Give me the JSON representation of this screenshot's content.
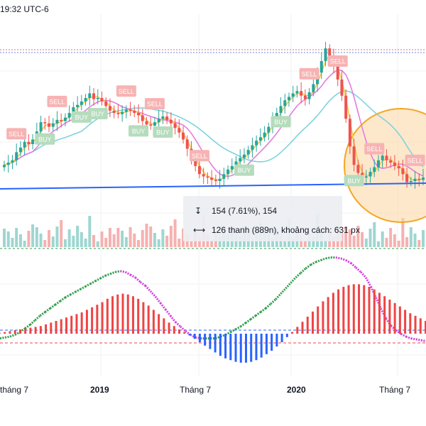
{
  "header": {
    "time_text": "19:32 UTC-6"
  },
  "measure": {
    "price_icon": "vertical-range-icon",
    "bars_icon": "horizontal-range-icon",
    "price_change_text": "154 (7.61%), 154",
    "bars_text": "126 thanh (889n), khoảng cách: 631 px"
  },
  "colors": {
    "up": "#26a69a",
    "down": "#ef5350",
    "ma_fast": "#f7c948",
    "ma_mid": "#e37ce0",
    "ma_slow": "#7fd3dd",
    "trendline": "#2962ff",
    "circle_stroke": "#f5a623",
    "circle_fill": "#fbd9a8",
    "sell_label": "#f7b3b3",
    "buy_label": "#b6dcbd",
    "osc_green": "#2e9e4a",
    "osc_magenta": "#d340dd",
    "osc_red": "#ef4444",
    "osc_blue": "#2962ff"
  },
  "chart_data": {
    "type": "line",
    "title": "",
    "x_labels": [
      "tháng 7",
      "2019",
      "Tháng 7",
      "2020",
      "Tháng 7"
    ],
    "close": [
      1.1,
      1.2,
      1.3,
      1.65,
      1.85,
      2.1,
      2.0,
      2.2,
      2.55,
      2.95,
      2.9,
      2.75,
      2.9,
      3.05,
      3.0,
      3.15,
      3.35,
      3.6,
      3.7,
      3.85,
      4.0,
      4.2,
      3.95,
      4.0,
      3.85,
      3.65,
      3.45,
      3.35,
      3.3,
      3.4,
      3.5,
      3.45,
      3.35,
      3.25,
      3.0,
      2.85,
      2.8,
      2.95,
      3.1,
      3.2,
      3.05,
      2.9,
      2.7,
      2.5,
      2.2,
      1.8,
      1.4,
      1.05,
      0.7,
      0.6,
      0.55,
      0.45,
      0.4,
      0.5,
      0.7,
      0.9,
      1.05,
      1.25,
      1.4,
      1.55,
      1.75,
      1.95,
      2.15,
      2.3,
      2.5,
      2.75,
      3.05,
      3.35,
      3.65,
      3.9,
      4.05,
      4.2,
      4.3,
      4.1,
      3.95,
      4.25,
      4.6,
      5.1,
      5.6,
      6.15,
      5.8,
      5.4,
      4.8,
      4.1,
      3.1,
      1.9,
      1.1,
      0.75,
      0.55,
      0.6,
      0.8,
      1.0,
      1.3,
      1.5,
      1.3,
      1.2,
      1.05,
      0.95,
      0.7,
      0.35,
      0.4,
      0.5,
      0.45,
      0.55
    ],
    "sell_signals": [
      3,
      13,
      30,
      37,
      48,
      75,
      82,
      91,
      101
    ],
    "buy_signals": [
      10,
      19,
      23,
      33,
      39,
      59,
      68,
      86
    ],
    "oscillator": {
      "line_a": [
        5,
        6,
        7,
        9,
        12,
        16,
        20,
        25,
        30,
        34,
        38,
        42,
        46,
        50,
        53,
        56,
        59,
        62,
        65,
        68,
        71,
        74,
        76,
        78,
        79,
        78,
        75,
        72,
        67,
        63,
        57,
        51,
        44,
        37,
        30,
        23,
        18,
        13,
        9,
        6,
        5,
        5,
        5,
        5,
        7,
        9,
        12,
        15,
        18,
        22,
        26,
        30,
        34,
        38,
        43,
        48,
        54,
        60,
        66,
        72,
        77,
        82,
        86,
        89,
        91,
        93,
        94,
        94,
        93,
        91,
        88,
        83,
        78,
        72,
        62,
        50,
        38,
        27,
        19,
        14,
        10,
        7,
        5,
        4,
        3,
        2
      ],
      "histogram": [
        1,
        2,
        3,
        4,
        5,
        6,
        7,
        8,
        9,
        11,
        13,
        15,
        17,
        19,
        21,
        23,
        25,
        28,
        31,
        34,
        37,
        41,
        44,
        46,
        47,
        46,
        44,
        41,
        37,
        33,
        28,
        23,
        18,
        13,
        9,
        5,
        2,
        -2,
        -6,
        -10,
        -14,
        -18,
        -22,
        -26,
        -29,
        -31,
        -33,
        -34,
        -34,
        -33,
        -31,
        -28,
        -24,
        -20,
        -15,
        -10,
        -4,
        2,
        8,
        14,
        20,
        26,
        32,
        38,
        43,
        48,
        52,
        55,
        57,
        58,
        58,
        57,
        55,
        52,
        48,
        44,
        40,
        36,
        32,
        28,
        24,
        21,
        18,
        15
      ]
    }
  }
}
